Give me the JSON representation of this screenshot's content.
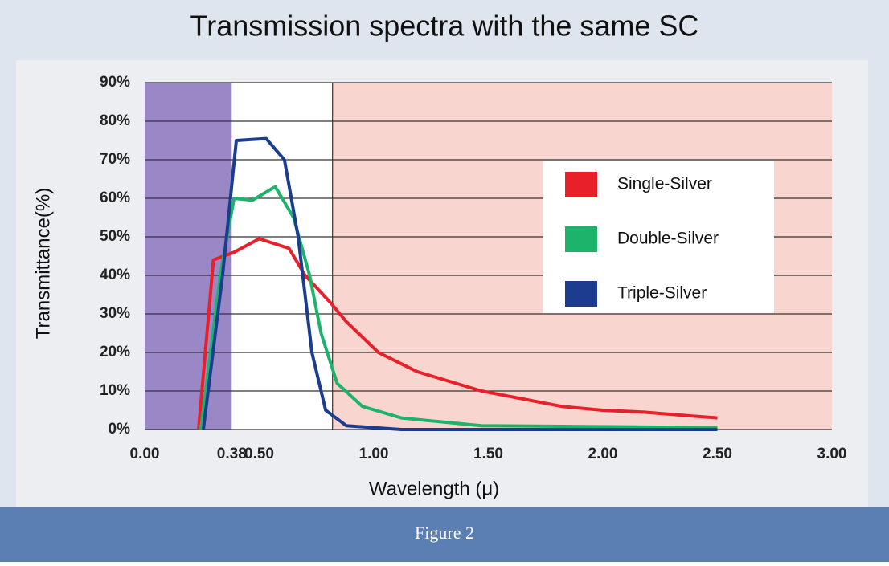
{
  "chart_data": {
    "type": "line",
    "title": "Transmission spectra with the same SC",
    "x_label": "Wavelength (μ)",
    "y_label": "Transmittance(%)",
    "caption": "Figure 2",
    "xlim": [
      0,
      3
    ],
    "ylim": [
      0,
      90
    ],
    "xticks": [
      {
        "value": 0,
        "label": "0.00"
      },
      {
        "value": 0.38,
        "label": "0.38"
      },
      {
        "value": 0.5,
        "label": "0.50"
      },
      {
        "value": 1,
        "label": "1.00"
      },
      {
        "value": 1.5,
        "label": "1.50"
      },
      {
        "value": 2,
        "label": "2.00"
      },
      {
        "value": 2.5,
        "label": "2.50"
      },
      {
        "value": 3,
        "label": "3.00"
      }
    ],
    "yticks": [
      {
        "value": 0,
        "label": "0%"
      },
      {
        "value": 10,
        "label": "10%"
      },
      {
        "value": 20,
        "label": "20%"
      },
      {
        "value": 30,
        "label": "30%"
      },
      {
        "value": 40,
        "label": "40%"
      },
      {
        "value": 50,
        "label": "50%"
      },
      {
        "value": 60,
        "label": "60%"
      },
      {
        "value": 70,
        "label": "70%"
      },
      {
        "value": 80,
        "label": "80%"
      },
      {
        "value": 90,
        "label": "90%"
      }
    ],
    "grid": true,
    "shaded_regions": [
      {
        "from": 0,
        "to": 0.38,
        "color": "#9a88c6"
      },
      {
        "from": 0.82,
        "to": 3,
        "color": "#f8d6cf"
      }
    ],
    "series": [
      {
        "name": "Single-Silver",
        "color": "#e8202a",
        "x": [
          0.235,
          0.3,
          0.39,
          0.5,
          0.63,
          0.7,
          0.81,
          0.88,
          1.02,
          1.19,
          1.47,
          1.82,
          2.0,
          2.18,
          2.39,
          2.5
        ],
        "values": [
          0,
          44,
          46,
          49.5,
          47,
          40,
          33,
          28,
          20,
          15,
          10,
          6,
          5,
          4.5,
          3.5,
          3
        ]
      },
      {
        "name": "Double-Silver",
        "color": "#1db36b",
        "x": [
          0.245,
          0.33,
          0.39,
          0.47,
          0.57,
          0.65,
          0.72,
          0.77,
          0.84,
          0.95,
          1.12,
          1.47,
          2.5
        ],
        "values": [
          0,
          40,
          60,
          59.5,
          63,
          55,
          40,
          25,
          12,
          6,
          3,
          1,
          0.5
        ]
      },
      {
        "name": "Triple-Silver",
        "color": "#1c3d8f",
        "x": [
          0.256,
          0.34,
          0.4,
          0.53,
          0.61,
          0.67,
          0.73,
          0.79,
          0.88,
          1.12,
          2.5
        ],
        "values": [
          0,
          40,
          75,
          75.5,
          70,
          50,
          20,
          5,
          1,
          0,
          0
        ]
      }
    ]
  }
}
